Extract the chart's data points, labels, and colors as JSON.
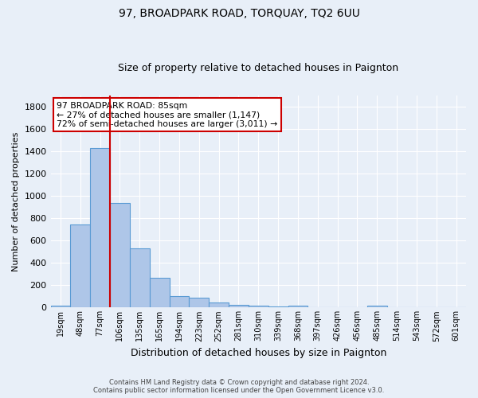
{
  "title": "97, BROADPARK ROAD, TORQUAY, TQ2 6UU",
  "subtitle": "Size of property relative to detached houses in Paignton",
  "xlabel": "Distribution of detached houses by size in Paignton",
  "ylabel": "Number of detached properties",
  "footer_line1": "Contains HM Land Registry data © Crown copyright and database right 2024.",
  "footer_line2": "Contains public sector information licensed under the Open Government Licence v3.0.",
  "bin_labels": [
    "19sqm",
    "48sqm",
    "77sqm",
    "106sqm",
    "135sqm",
    "165sqm",
    "194sqm",
    "223sqm",
    "252sqm",
    "281sqm",
    "310sqm",
    "339sqm",
    "368sqm",
    "397sqm",
    "426sqm",
    "456sqm",
    "485sqm",
    "514sqm",
    "543sqm",
    "572sqm",
    "601sqm"
  ],
  "bar_values": [
    20,
    740,
    1430,
    935,
    530,
    265,
    103,
    88,
    45,
    25,
    15,
    10,
    15,
    5,
    5,
    5,
    15,
    0,
    0,
    0,
    0
  ],
  "bar_color": "#aec6e8",
  "bar_edge_color": "#5a9bd4",
  "background_color": "#e8eff8",
  "grid_color": "#ffffff",
  "red_line_color": "#cc0000",
  "annotation_text_line1": "97 BROADPARK ROAD: 85sqm",
  "annotation_text_line2": "← 27% of detached houses are smaller (1,147)",
  "annotation_text_line3": "72% of semi-detached houses are larger (3,011) →",
  "annotation_box_color": "#ffffff",
  "annotation_box_edge": "#cc0000",
  "ylim": [
    0,
    1900
  ],
  "yticks": [
    0,
    200,
    400,
    600,
    800,
    1000,
    1200,
    1400,
    1600,
    1800
  ],
  "red_line_x": 2.5
}
